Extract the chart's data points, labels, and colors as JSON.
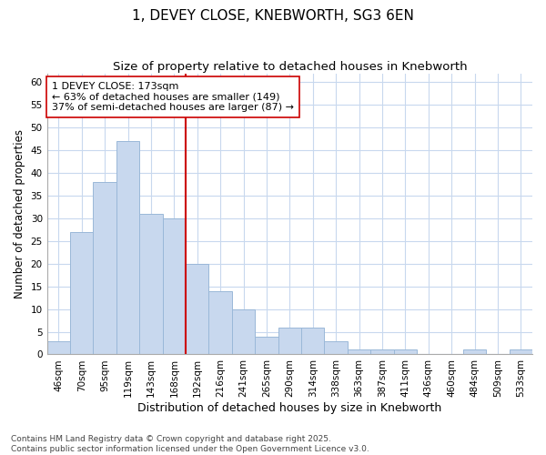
{
  "title": "1, DEVEY CLOSE, KNEBWORTH, SG3 6EN",
  "subtitle": "Size of property relative to detached houses in Knebworth",
  "xlabel": "Distribution of detached houses by size in Knebworth",
  "ylabel": "Number of detached properties",
  "categories": [
    "46sqm",
    "70sqm",
    "95sqm",
    "119sqm",
    "143sqm",
    "168sqm",
    "192sqm",
    "216sqm",
    "241sqm",
    "265sqm",
    "290sqm",
    "314sqm",
    "338sqm",
    "363sqm",
    "387sqm",
    "411sqm",
    "436sqm",
    "460sqm",
    "484sqm",
    "509sqm",
    "533sqm"
  ],
  "values": [
    3,
    27,
    38,
    47,
    31,
    30,
    20,
    14,
    10,
    4,
    6,
    6,
    3,
    1,
    1,
    1,
    0,
    0,
    1,
    0,
    1
  ],
  "bar_color": "#c8d8ee",
  "bar_edge_color": "#9ab8d8",
  "vline_x_index": 5.5,
  "vline_color": "#cc0000",
  "annotation_text": "1 DEVEY CLOSE: 173sqm\n← 63% of detached houses are smaller (149)\n37% of semi-detached houses are larger (87) →",
  "annotation_box_color": "#ffffff",
  "annotation_box_edge": "#cc0000",
  "annotation_fontsize": 8,
  "ylim": [
    0,
    62
  ],
  "yticks": [
    0,
    5,
    10,
    15,
    20,
    25,
    30,
    35,
    40,
    45,
    50,
    55,
    60
  ],
  "background_color": "#ffffff",
  "grid_color": "#c8d8ee",
  "title_fontsize": 11,
  "subtitle_fontsize": 9.5,
  "xlabel_fontsize": 9,
  "ylabel_fontsize": 8.5,
  "tick_fontsize": 7.5,
  "footer": "Contains HM Land Registry data © Crown copyright and database right 2025.\nContains public sector information licensed under the Open Government Licence v3.0."
}
